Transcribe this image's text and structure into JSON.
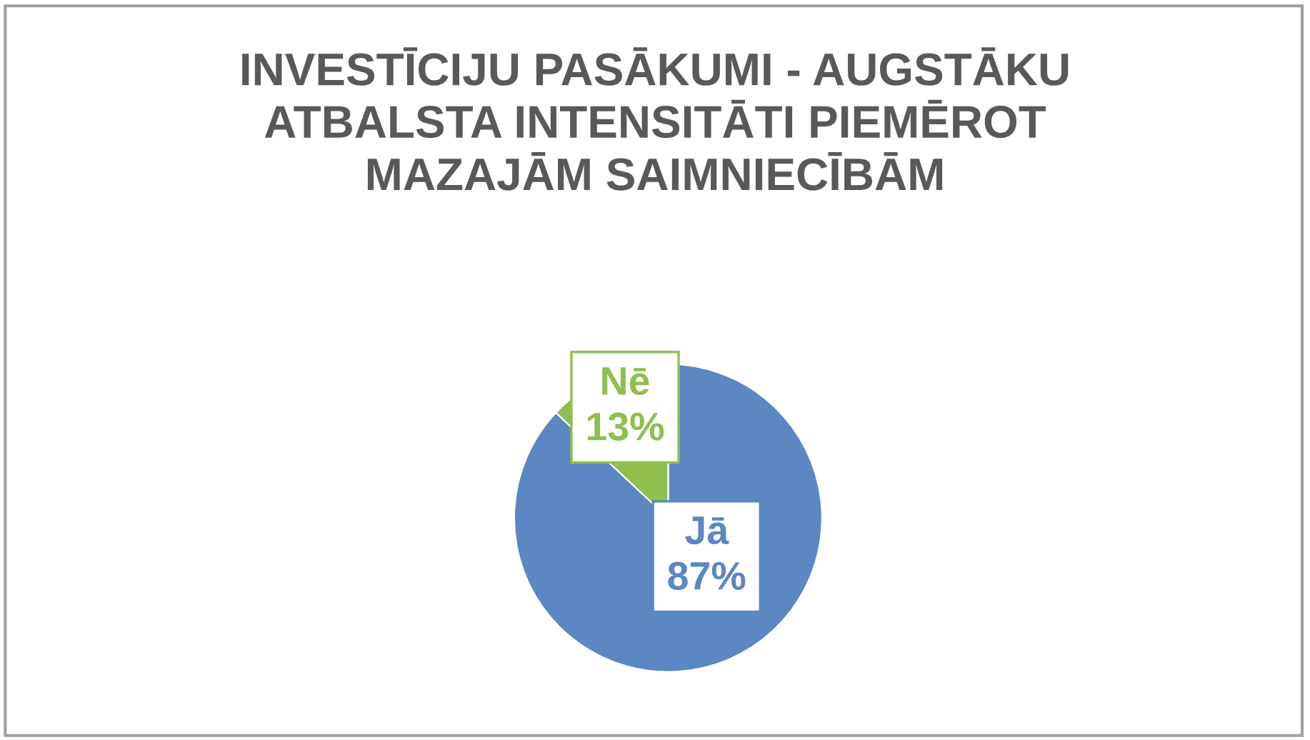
{
  "chart_data": {
    "type": "pie",
    "title": "INVESTĪCIJU PASĀKUMI - AUGSTĀKU\nATBALSTA INTENSITĀTI PIEMĒROT\nMAZAJĀM SAIMNIECĪBĀM",
    "categories": [
      "Jā",
      "Nē"
    ],
    "values": [
      87,
      13
    ],
    "colors": [
      "#5b87c2",
      "#8fbf4d"
    ],
    "value_labels": [
      "87%",
      "13%"
    ],
    "legend": false
  }
}
